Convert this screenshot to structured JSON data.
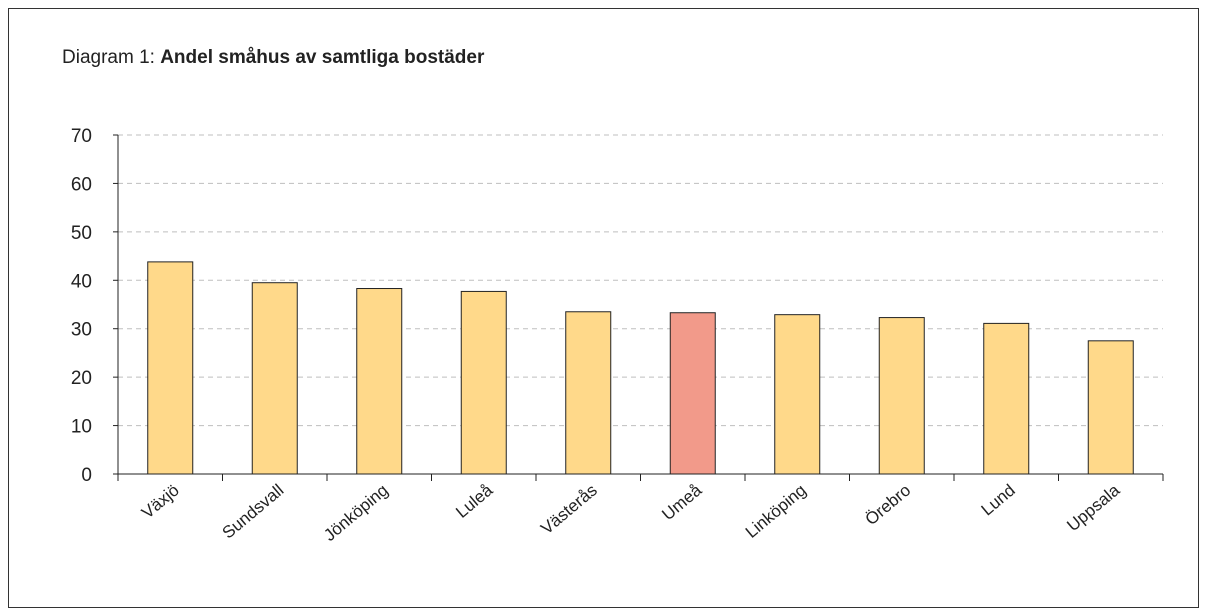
{
  "title": {
    "prefix": "Diagram 1: ",
    "main": "Andel småhus av samtliga bostäder"
  },
  "chart_data": {
    "type": "bar",
    "categories": [
      "Växjö",
      "Sundsvall",
      "Jönköping",
      "Luleå",
      "Västerås",
      "Umeå",
      "Linköping",
      "Örebro",
      "Lund",
      "Uppsala"
    ],
    "values": [
      43.8,
      39.5,
      38.3,
      37.7,
      33.5,
      33.3,
      32.9,
      32.3,
      31.1,
      27.5
    ],
    "highlight_category": "Umeå",
    "ylim": [
      0,
      70
    ],
    "yticks": [
      "0",
      "10",
      "20",
      "30",
      "40",
      "50",
      "60",
      "70"
    ],
    "grid": true,
    "legend": "none",
    "colors": {
      "bar": "#FFD98A",
      "bar_highlight": "#F29A8A",
      "bar_edge": "#222222",
      "grid": "#BFBFBF",
      "axis": "#222222"
    }
  }
}
